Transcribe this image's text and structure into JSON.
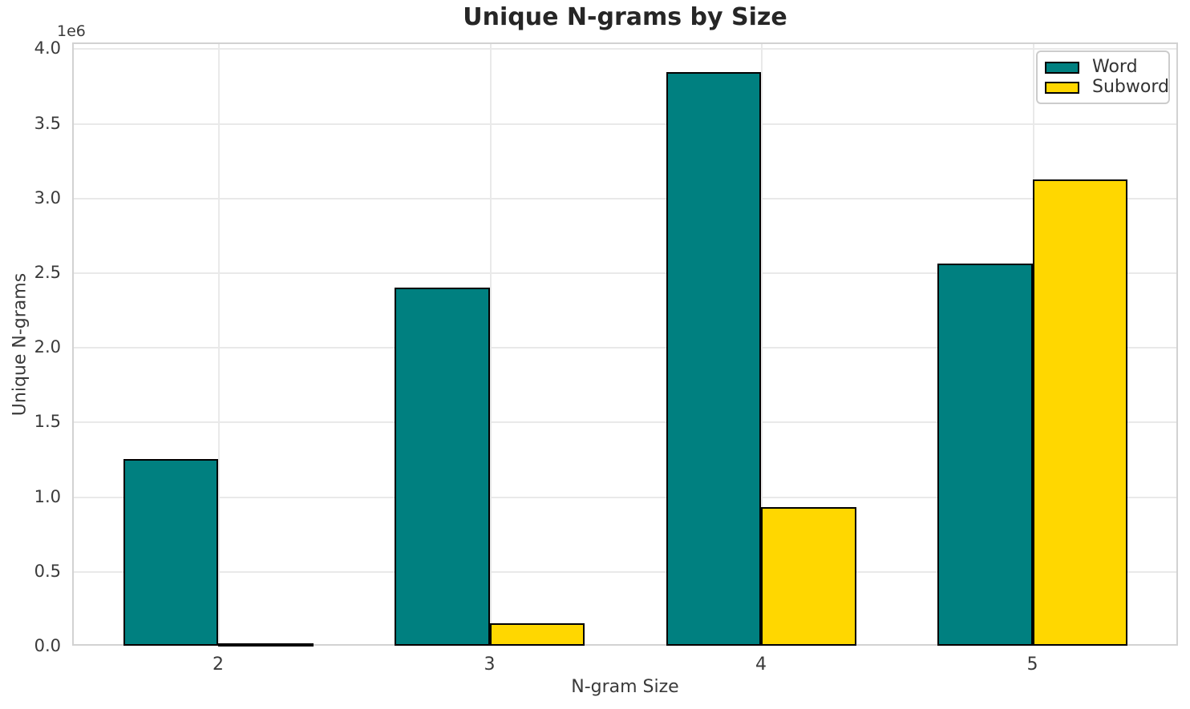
{
  "chart_data": {
    "type": "bar",
    "title": "Unique N-grams by Size",
    "xlabel": "N-gram Size",
    "ylabel": "Unique N-grams",
    "y_offset_text": "1e6",
    "categories": [
      "2",
      "3",
      "4",
      "5"
    ],
    "series": [
      {
        "name": "Word",
        "color": "#008080",
        "values": [
          1250000,
          2400000,
          3840000,
          2560000
        ]
      },
      {
        "name": "Subword",
        "color": "#FFD700",
        "values": [
          15000,
          150000,
          930000,
          3120000
        ]
      }
    ],
    "bar_edge_color": "#000000",
    "ylim": [
      0,
      4040000
    ],
    "yticks": [
      0,
      500000,
      1000000,
      1500000,
      2000000,
      2500000,
      3000000,
      3500000,
      4000000
    ],
    "ytick_labels": [
      "0.0",
      "0.5",
      "1.0",
      "1.5",
      "2.0",
      "2.5",
      "3.0",
      "3.5",
      "4.0"
    ],
    "grid": true,
    "legend_position": "upper right",
    "colors": {
      "background": "#ffffff",
      "grid": "#e9e9e9",
      "spine": "#d2d2d2",
      "text": "#3a3a3a",
      "title_text": "#262626"
    }
  }
}
